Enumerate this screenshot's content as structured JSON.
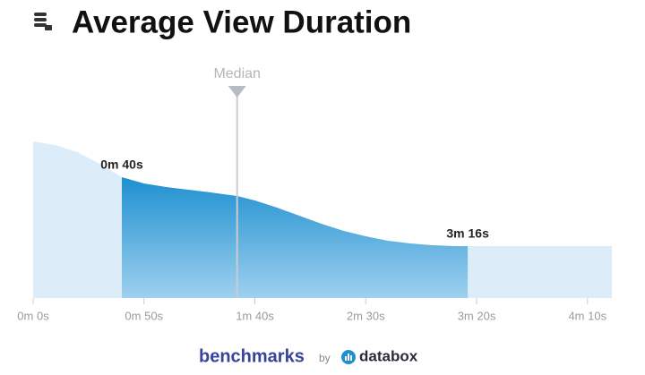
{
  "chart_data": {
    "type": "area",
    "title": "Average View Duration",
    "x": [
      0,
      10,
      20,
      30,
      40,
      50,
      60,
      70,
      80,
      92,
      100,
      110,
      120,
      130,
      140,
      150,
      160,
      170,
      180,
      190,
      196,
      210,
      230,
      261
    ],
    "y": [
      175,
      171,
      163,
      150,
      135,
      128,
      124,
      121,
      118,
      114,
      109,
      101,
      92,
      83,
      75,
      69,
      64,
      61,
      59,
      58,
      58,
      58,
      58,
      58
    ],
    "xlim": [
      0,
      261
    ],
    "ylim": [
      0,
      180
    ],
    "xticks": [
      {
        "value": 0,
        "label": "0m 0s"
      },
      {
        "value": 50,
        "label": "0m 50s"
      },
      {
        "value": 100,
        "label": "1m 40s"
      },
      {
        "value": 150,
        "label": "2m 30s"
      },
      {
        "value": 200,
        "label": "3m 20s"
      },
      {
        "value": 250,
        "label": "4m 10s"
      }
    ],
    "range_start": {
      "value": 40,
      "label": "0m 40s"
    },
    "range_end": {
      "value": 196,
      "label": "3m 16s"
    },
    "median": {
      "value": 92,
      "label": "Median"
    },
    "color": "#dcedf9",
    "highlight_colors": [
      "#1e90d0",
      "#9fd0ef"
    ],
    "footer": {
      "brand": "benchmarks",
      "by": "by",
      "partner": "databox"
    }
  }
}
